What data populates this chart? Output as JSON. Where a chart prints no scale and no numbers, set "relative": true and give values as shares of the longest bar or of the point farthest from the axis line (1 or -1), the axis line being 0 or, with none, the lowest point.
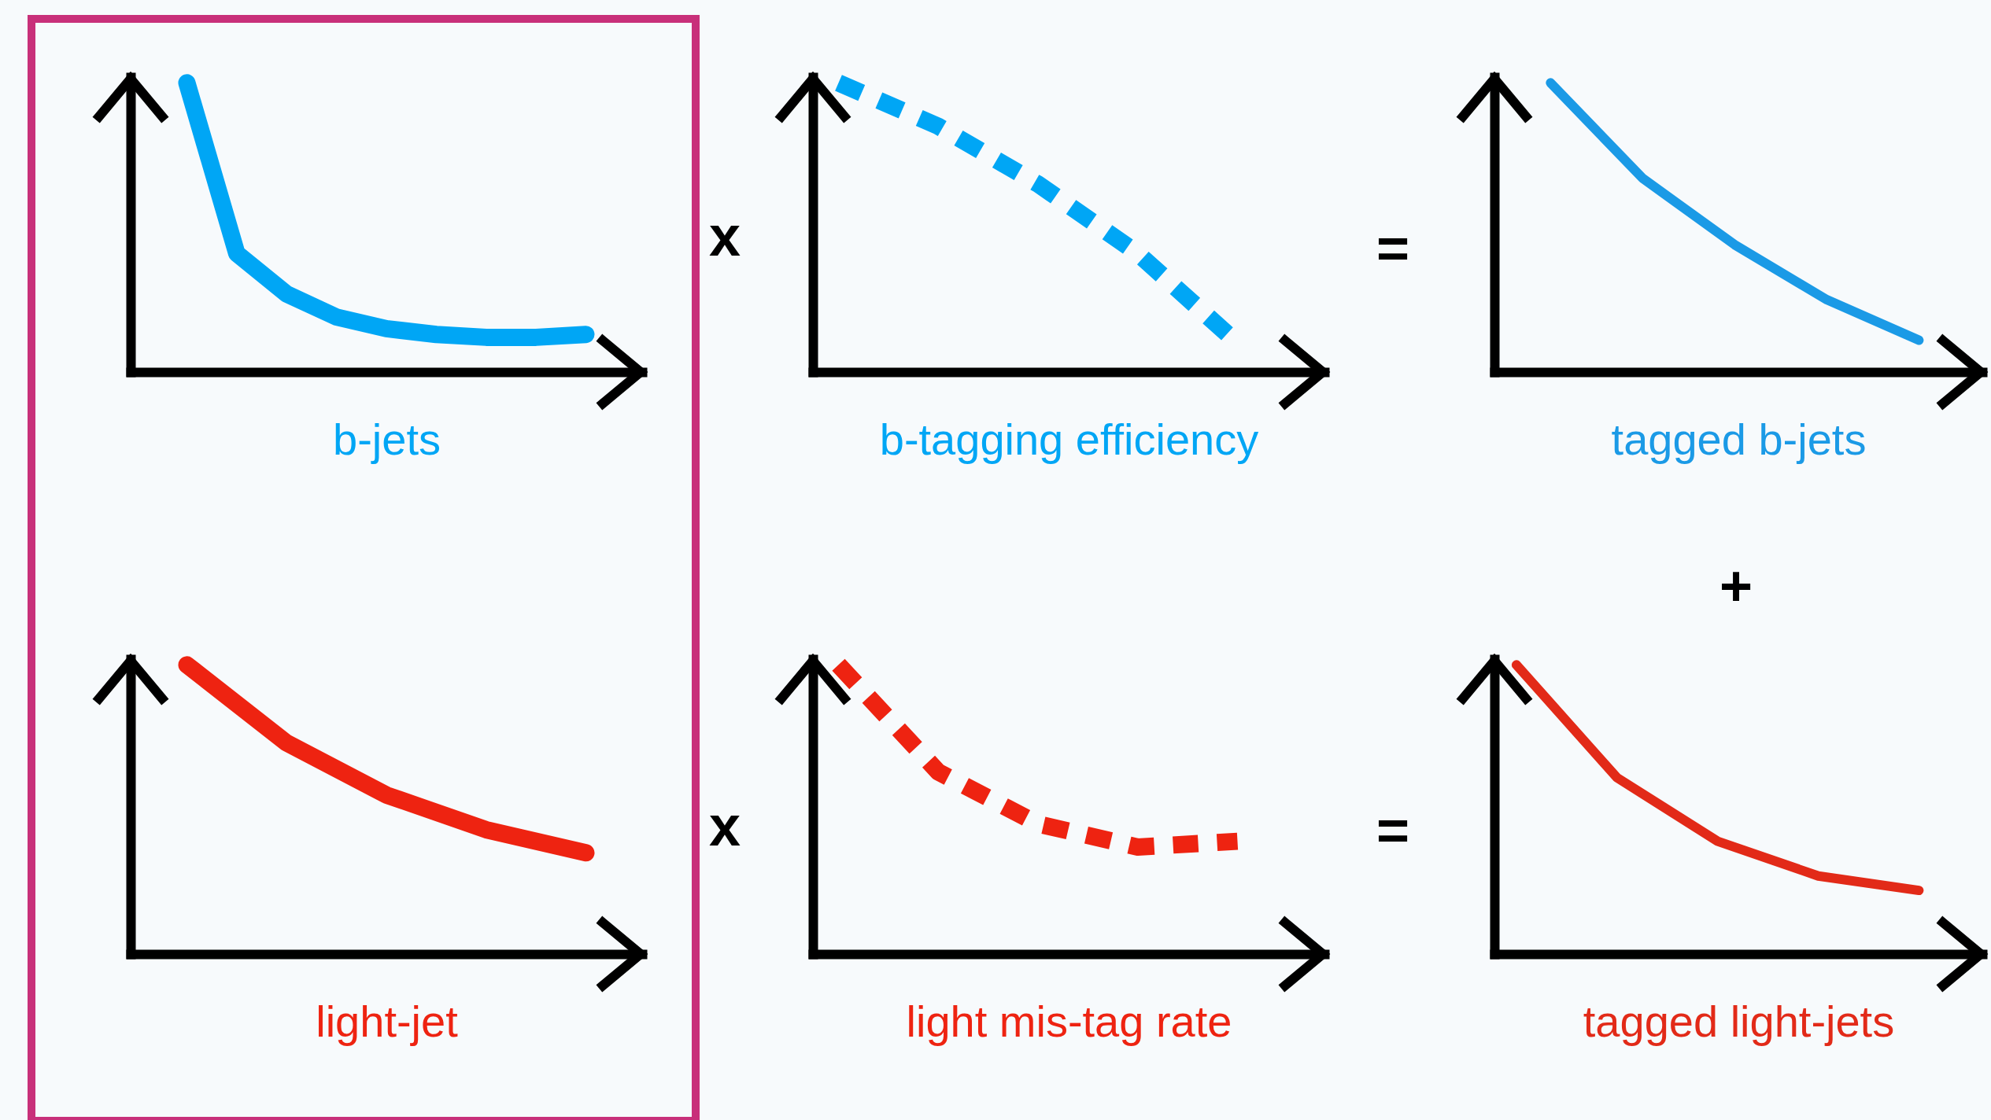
{
  "chart_data": [
    {
      "type": "line",
      "relative": true,
      "tick_labels": false,
      "line_style": "solid",
      "xlabel": "b-jets",
      "categories": [
        null,
        null,
        null,
        null,
        null,
        null,
        null,
        null,
        null
      ],
      "series": [
        {
          "color": "#00a6f5",
          "values": [
            1,
            0.41,
            0.27,
            0.19,
            0.15,
            0.13,
            0.12,
            0.12,
            0.13
          ]
        }
      ]
    },
    {
      "type": "line",
      "relative": true,
      "tick_labels": false,
      "line_style": "dashed",
      "xlabel": "b-tagging efficiency",
      "annotations": [
        "x"
      ],
      "categories": [
        null,
        null,
        null,
        null,
        null
      ],
      "series": [
        {
          "color": "#00a6f5",
          "values": [
            1,
            0.85,
            0.65,
            0.41,
            0.1
          ]
        }
      ]
    },
    {
      "type": "line",
      "relative": true,
      "tick_labels": false,
      "line_style": "solid",
      "xlabel": "tagged b-jets",
      "annotations": [
        "=",
        "+"
      ],
      "categories": [
        null,
        null,
        null,
        null,
        null
      ],
      "series": [
        {
          "color": "#1b9ae6",
          "values": [
            1,
            0.67,
            0.44,
            0.25,
            0.11
          ]
        }
      ]
    },
    {
      "type": "line",
      "relative": true,
      "tick_labels": false,
      "line_style": "solid",
      "xlabel": "light-jet",
      "categories": [
        null,
        null,
        null,
        null,
        null
      ],
      "series": [
        {
          "color": "#ee2311",
          "values": [
            1,
            0.73,
            0.55,
            0.43,
            0.35
          ]
        }
      ]
    },
    {
      "type": "line",
      "relative": true,
      "tick_labels": false,
      "line_style": "dashed",
      "xlabel": "light mis-tag rate",
      "annotations": [
        "x"
      ],
      "categories": [
        null,
        null,
        null,
        null,
        null
      ],
      "series": [
        {
          "color": "#ee2311",
          "values": [
            1,
            0.63,
            0.45,
            0.37,
            0.39
          ]
        }
      ]
    },
    {
      "type": "line",
      "relative": true,
      "tick_labels": false,
      "line_style": "solid",
      "xlabel": "tagged light-jets",
      "annotations": [
        "="
      ],
      "categories": [
        null,
        null,
        null,
        null,
        null
      ],
      "series": [
        {
          "color": "#e22a18",
          "values": [
            1,
            0.61,
            0.39,
            0.27,
            0.22
          ]
        }
      ]
    }
  ]
}
